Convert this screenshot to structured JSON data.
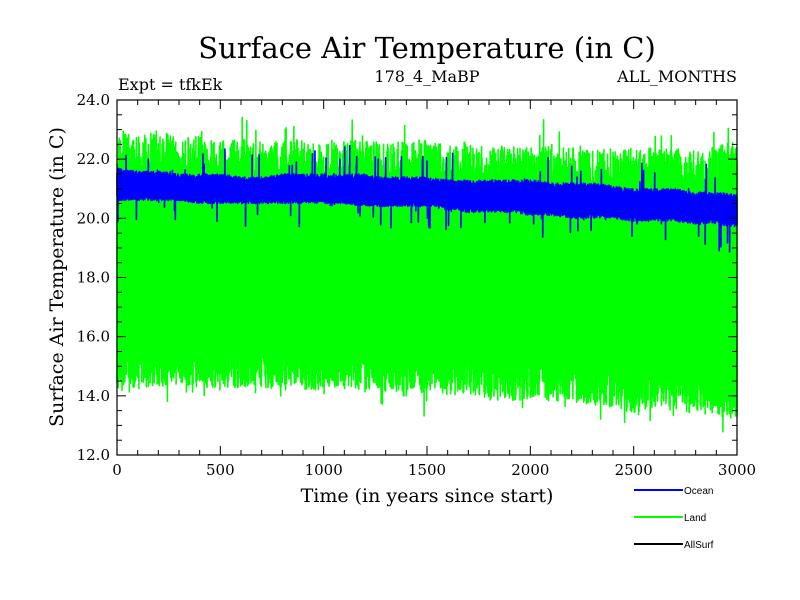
{
  "header": {
    "title": "Surface Air Temperature (in C)",
    "expt": "Expt = tfkEk",
    "subtitle": "178_4_MaBP",
    "months": "ALL_MONTHS"
  },
  "colors": {
    "ocean": "#0000ff",
    "land": "#00ff00",
    "allsurf": "#000000",
    "axis": "#000000"
  },
  "chart_data": {
    "type": "line",
    "title": "Surface Air Temperature (in C)",
    "xlabel": "Time (in years since start)",
    "ylabel": "Surface Air Temperature (in C)",
    "xlim": [
      0,
      3000
    ],
    "ylim": [
      12.0,
      24.0
    ],
    "xticks": [
      0,
      500,
      1000,
      1500,
      2000,
      2500,
      3000
    ],
    "xtick_labels": [
      "0",
      "500",
      "1000",
      "1500",
      "2000",
      "2500",
      "3000"
    ],
    "yticks": [
      12.0,
      14.0,
      16.0,
      18.0,
      20.0,
      22.0,
      24.0
    ],
    "ytick_labels": [
      "12.0",
      "14.0",
      "16.0",
      "18.0",
      "20.0",
      "22.0",
      "24.0"
    ],
    "grid": false,
    "legend_position": "bottom-right",
    "series": [
      {
        "name": "Land",
        "color": "#00ff00",
        "x": [
          0,
          100,
          200,
          300,
          400,
          500,
          600,
          700,
          800,
          900,
          1000,
          1100,
          1200,
          1300,
          1400,
          1500,
          1600,
          1700,
          1800,
          1900,
          2000,
          2100,
          2200,
          2300,
          2400,
          2500,
          2600,
          2700,
          2800,
          2900,
          3000
        ],
        "high": [
          22.9,
          22.8,
          23.0,
          22.7,
          22.8,
          22.6,
          22.7,
          22.6,
          22.6,
          22.7,
          22.6,
          22.7,
          22.8,
          22.5,
          22.6,
          22.7,
          22.5,
          22.6,
          22.4,
          22.5,
          22.4,
          22.5,
          22.4,
          22.3,
          22.4,
          22.3,
          22.4,
          22.3,
          22.4,
          22.5,
          22.6
        ],
        "low": [
          14.0,
          14.2,
          14.3,
          14.4,
          14.3,
          14.2,
          14.3,
          14.3,
          14.2,
          14.2,
          14.2,
          14.2,
          14.1,
          14.1,
          14.0,
          14.1,
          14.0,
          14.0,
          13.9,
          13.8,
          13.9,
          13.8,
          13.8,
          13.7,
          13.6,
          13.4,
          13.6,
          13.5,
          13.4,
          13.3,
          13.2
        ],
        "peak_max": 24.0,
        "trough_min": 12.4
      },
      {
        "name": "Ocean",
        "color": "#0000ff",
        "x": [
          0,
          100,
          200,
          300,
          400,
          500,
          600,
          700,
          800,
          900,
          1000,
          1100,
          1200,
          1300,
          1400,
          1500,
          1600,
          1700,
          1800,
          1900,
          2000,
          2100,
          2200,
          2300,
          2400,
          2500,
          2600,
          2700,
          2800,
          2900,
          3000
        ],
        "high": [
          21.7,
          21.6,
          21.6,
          21.5,
          21.5,
          21.5,
          21.4,
          21.4,
          21.5,
          21.5,
          21.5,
          21.5,
          21.5,
          21.4,
          21.4,
          21.4,
          21.3,
          21.3,
          21.3,
          21.3,
          21.3,
          21.2,
          21.2,
          21.2,
          21.1,
          21.0,
          21.0,
          21.0,
          20.9,
          20.9,
          20.8
        ],
        "low": [
          20.6,
          20.6,
          20.6,
          20.6,
          20.5,
          20.5,
          20.5,
          20.5,
          20.5,
          20.5,
          20.5,
          20.5,
          20.4,
          20.4,
          20.4,
          20.4,
          20.3,
          20.2,
          20.2,
          20.2,
          20.1,
          20.1,
          20.0,
          20.0,
          20.0,
          19.9,
          19.9,
          19.9,
          19.8,
          19.8,
          19.7
        ]
      },
      {
        "name": "AllSurf",
        "color": "#000000"
      }
    ]
  }
}
